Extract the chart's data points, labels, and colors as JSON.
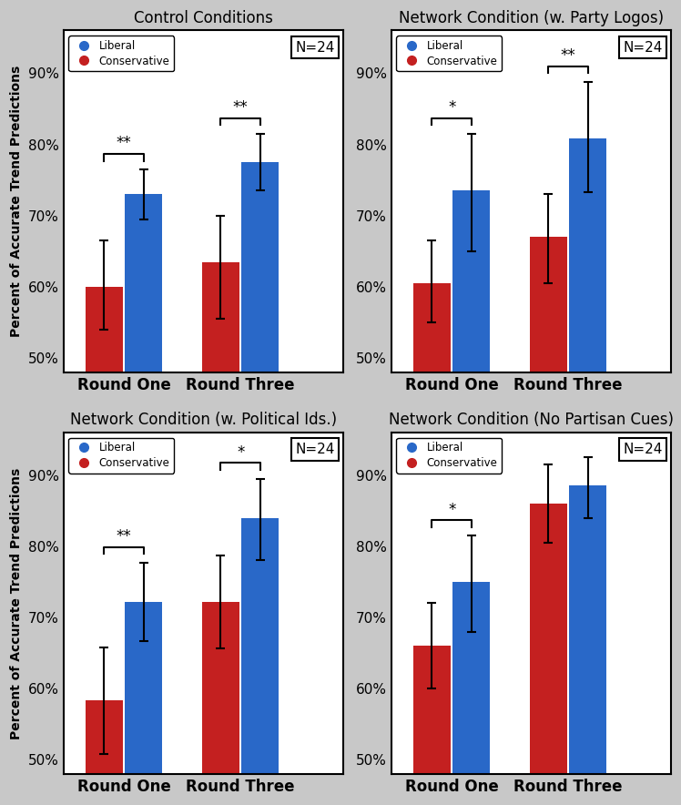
{
  "subplots": [
    {
      "title": "Control Conditions",
      "round_one": {
        "conservative": 0.6,
        "liberal": 0.73
      },
      "round_three": {
        "conservative": 0.635,
        "liberal": 0.775
      },
      "errors": {
        "round_one": {
          "conservative": [
            0.06,
            0.065
          ],
          "liberal": [
            0.035,
            0.035
          ]
        },
        "round_three": {
          "conservative": [
            0.08,
            0.065
          ],
          "liberal": [
            0.04,
            0.04
          ]
        }
      },
      "sig_r1": "**",
      "sig_r3": "**"
    },
    {
      "title": "Network Condition (w. Party Logos)",
      "round_one": {
        "conservative": 0.605,
        "liberal": 0.735
      },
      "round_three": {
        "conservative": 0.67,
        "liberal": 0.808
      },
      "errors": {
        "round_one": {
          "conservative": [
            0.055,
            0.06
          ],
          "liberal": [
            0.085,
            0.08
          ]
        },
        "round_three": {
          "conservative": [
            0.065,
            0.06
          ],
          "liberal": [
            0.075,
            0.08
          ]
        }
      },
      "sig_r1": "*",
      "sig_r3": "**"
    },
    {
      "title": "Network Condition (w. Political Ids.)",
      "round_one": {
        "conservative": 0.583,
        "liberal": 0.722
      },
      "round_three": {
        "conservative": 0.722,
        "liberal": 0.84
      },
      "errors": {
        "round_one": {
          "conservative": [
            0.075,
            0.075
          ],
          "liberal": [
            0.055,
            0.055
          ]
        },
        "round_three": {
          "conservative": [
            0.065,
            0.065
          ],
          "liberal": [
            0.06,
            0.055
          ]
        }
      },
      "sig_r1": "**",
      "sig_r3": "*"
    },
    {
      "title": "Network Condition (No Partisan Cues)",
      "round_one": {
        "conservative": 0.66,
        "liberal": 0.75
      },
      "round_three": {
        "conservative": 0.86,
        "liberal": 0.885
      },
      "errors": {
        "round_one": {
          "conservative": [
            0.06,
            0.06
          ],
          "liberal": [
            0.07,
            0.065
          ]
        },
        "round_three": {
          "conservative": [
            0.055,
            0.055
          ],
          "liberal": [
            0.045,
            0.04
          ]
        }
      },
      "sig_r1": "*",
      "sig_r3": null
    }
  ],
  "liberal_color": "#2968C8",
  "conservative_color": "#C42020",
  "bar_width": 0.32,
  "ylim": [
    0.48,
    0.96
  ],
  "yticks": [
    0.5,
    0.6,
    0.7,
    0.8,
    0.9
  ],
  "ylabel": "Percent of Accurate Trend Predictions",
  "xlabel_r1": "Round One",
  "xlabel_r3": "Round Three",
  "n_label": "N=24",
  "background_color": "#c8c8c8"
}
